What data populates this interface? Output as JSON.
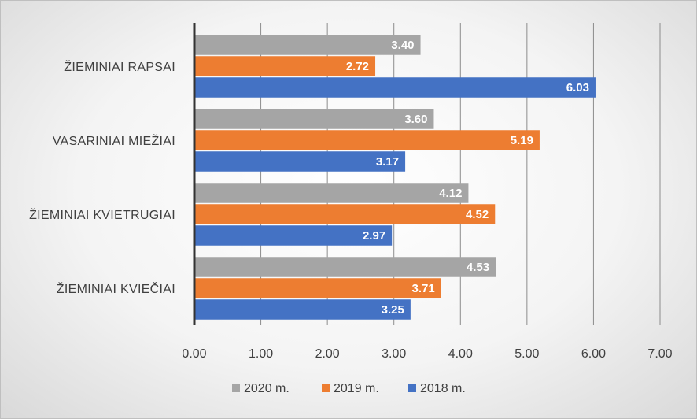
{
  "chart_data": {
    "type": "bar",
    "orientation": "horizontal",
    "categories": [
      "ŽIEMINIAI RAPSAI",
      "VASARINIAI MIEŽIAI",
      "ŽIEMINIAI KVIETRUGIAI",
      "ŽIEMINIAI KVIEČIAI"
    ],
    "series": [
      {
        "name": "2020 m.",
        "color": "#a5a5a5",
        "values": [
          3.4,
          3.6,
          4.12,
          4.53
        ],
        "labels": [
          "3.40",
          "3.60",
          "4.12",
          "4.53"
        ]
      },
      {
        "name": "2019 m.",
        "color": "#ed7d31",
        "values": [
          2.72,
          5.19,
          4.52,
          3.71
        ],
        "labels": [
          "2.72",
          "5.19",
          "4.52",
          "3.71"
        ]
      },
      {
        "name": "2018 m.",
        "color": "#4472c4",
        "values": [
          6.03,
          3.17,
          2.97,
          3.25
        ],
        "labels": [
          "6.03",
          "3.17",
          "2.97",
          "3.25"
        ]
      }
    ],
    "xlim": [
      0,
      7
    ],
    "xticks": [
      "0.00",
      "1.00",
      "2.00",
      "3.00",
      "4.00",
      "5.00",
      "6.00",
      "7.00"
    ],
    "title": "",
    "xlabel": "",
    "ylabel": "",
    "grid": "vertical",
    "legend_position": "bottom"
  }
}
